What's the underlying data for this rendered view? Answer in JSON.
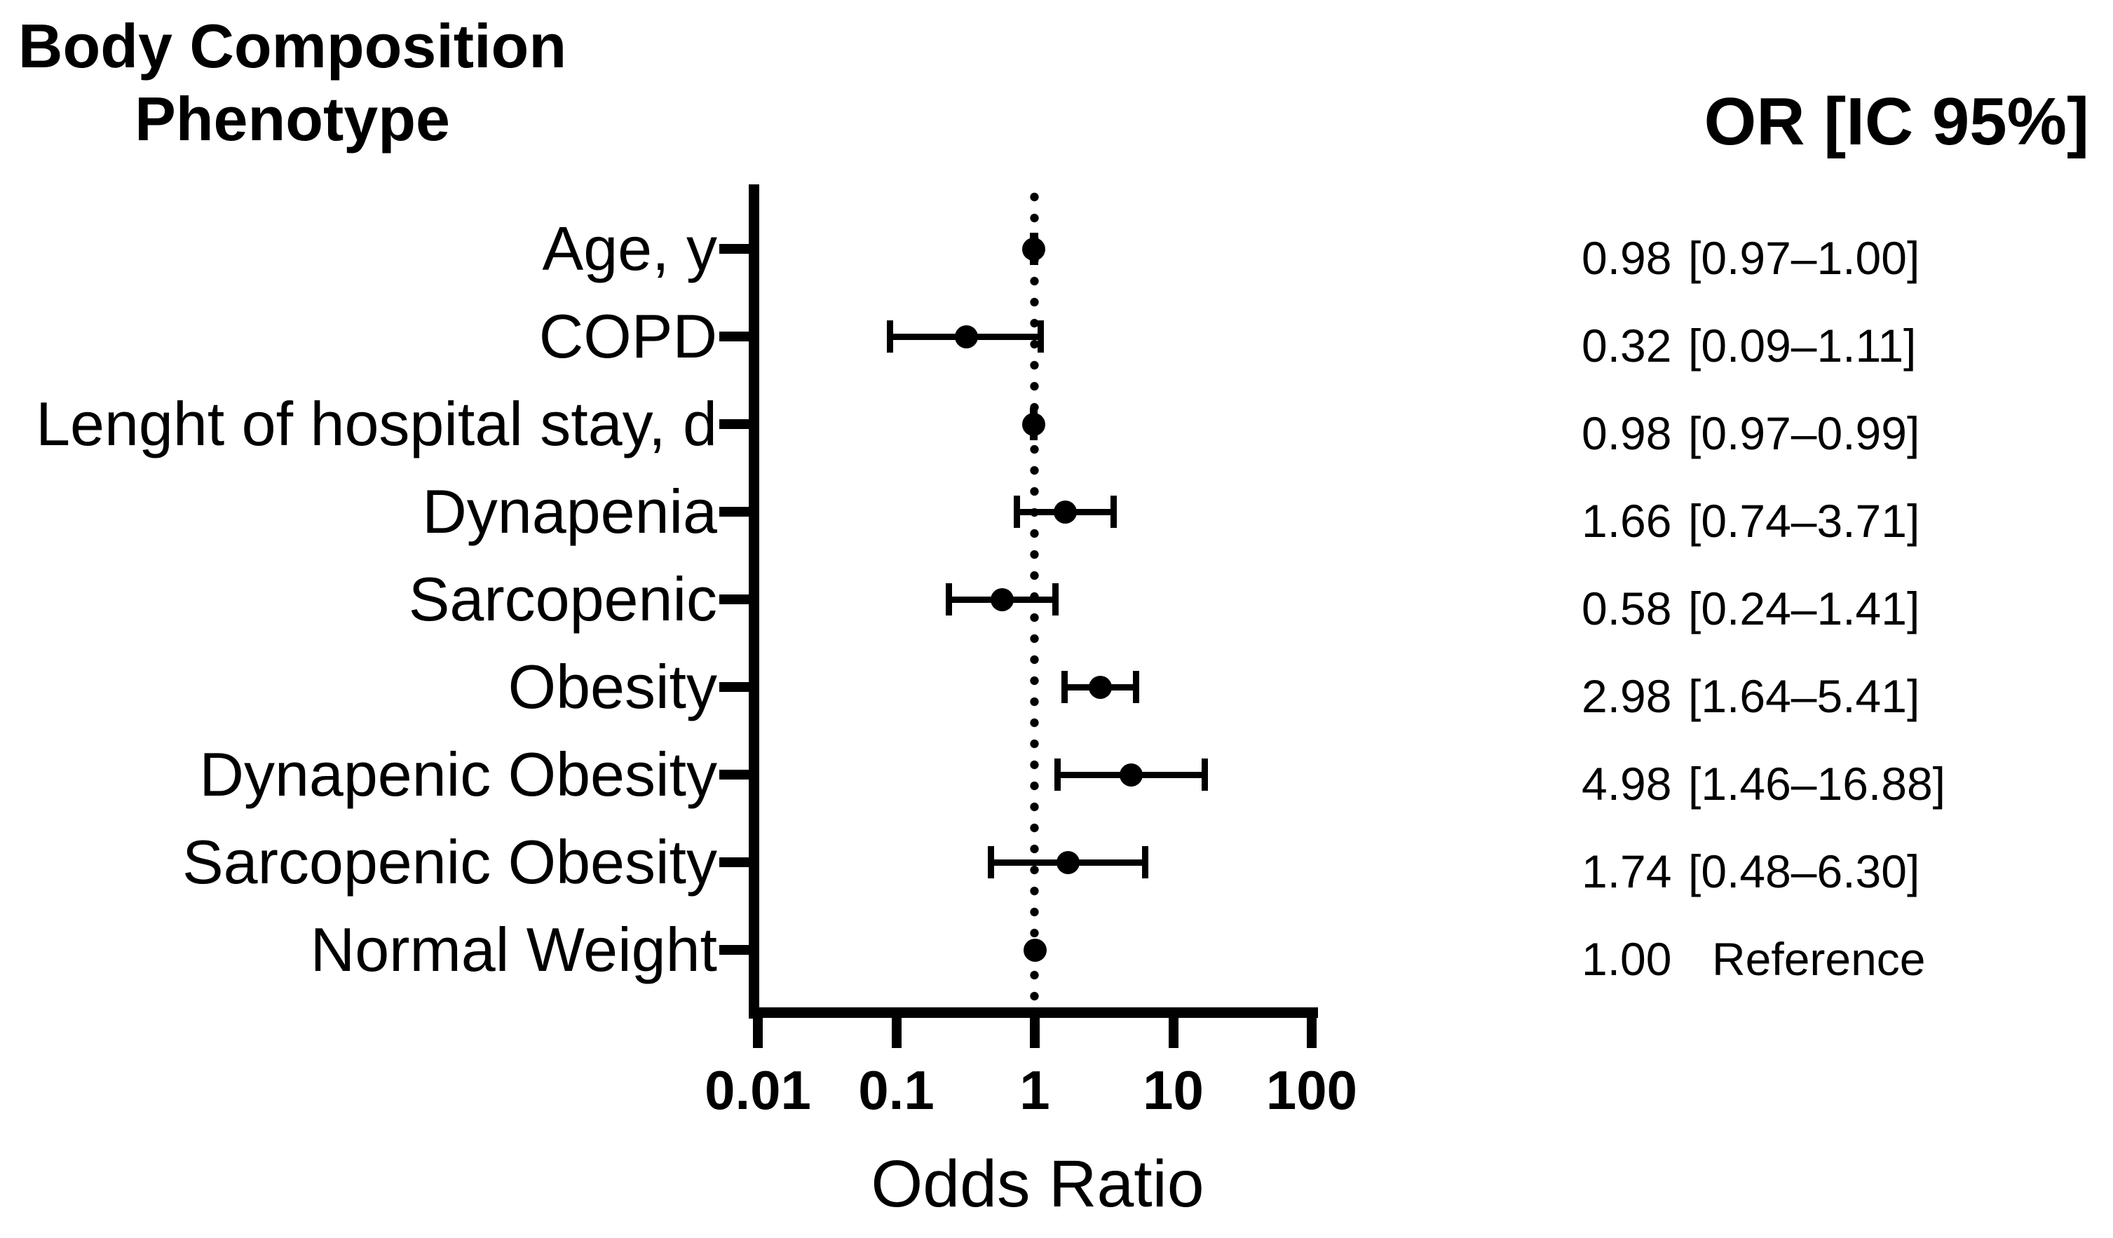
{
  "title": {
    "line1": "Body Composition",
    "line2": "Phenotype"
  },
  "or_column_header": "OR [IC 95%]",
  "chart_data": {
    "type": "scatter",
    "subtype": "forest-plot",
    "title": "Body Composition Phenotype",
    "xlabel": "Odds Ratio",
    "x_scale": "log",
    "xlim": [
      0.01,
      100
    ],
    "x_ticks": [
      0.01,
      0.1,
      1,
      10,
      100
    ],
    "x_tick_labels": [
      "0.01",
      "0.1",
      "1",
      "10",
      "100"
    ],
    "reference_line_x": 1,
    "marker_color": "#000000",
    "grid": false,
    "value_column_header": "OR [IC 95%]",
    "rows": [
      {
        "label": "Age, y",
        "or": 0.98,
        "ci_low": 0.97,
        "ci_high": 1.0,
        "or_text": "0.98",
        "ci_text": "[0.97–1.00]"
      },
      {
        "label": "COPD",
        "or": 0.32,
        "ci_low": 0.09,
        "ci_high": 1.11,
        "or_text": "0.32",
        "ci_text": "[0.09–1.11]"
      },
      {
        "label": "Lenght of hospital stay, d",
        "or": 0.98,
        "ci_low": 0.97,
        "ci_high": 0.99,
        "or_text": "0.98",
        "ci_text": "[0.97–0.99]"
      },
      {
        "label": "Dynapenia",
        "or": 1.66,
        "ci_low": 0.74,
        "ci_high": 3.71,
        "or_text": "1.66",
        "ci_text": "[0.74–3.71]"
      },
      {
        "label": "Sarcopenic",
        "or": 0.58,
        "ci_low": 0.24,
        "ci_high": 1.41,
        "or_text": "0.58",
        "ci_text": "[0.24–1.41]"
      },
      {
        "label": "Obesity",
        "or": 2.98,
        "ci_low": 1.64,
        "ci_high": 5.41,
        "or_text": "2.98",
        "ci_text": "[1.64–5.41]"
      },
      {
        "label": "Dynapenic Obesity",
        "or": 4.98,
        "ci_low": 1.46,
        "ci_high": 16.88,
        "or_text": "4.98",
        "ci_text": "[1.46–16.88]"
      },
      {
        "label": "Sarcopenic Obesity",
        "or": 1.74,
        "ci_low": 0.48,
        "ci_high": 6.3,
        "or_text": "1.74",
        "ci_text": "[0.48–6.30]"
      },
      {
        "label": "Normal Weight",
        "or": 1.0,
        "ci_low": null,
        "ci_high": null,
        "or_text": "1.00",
        "ci_text": "Reference"
      }
    ]
  }
}
